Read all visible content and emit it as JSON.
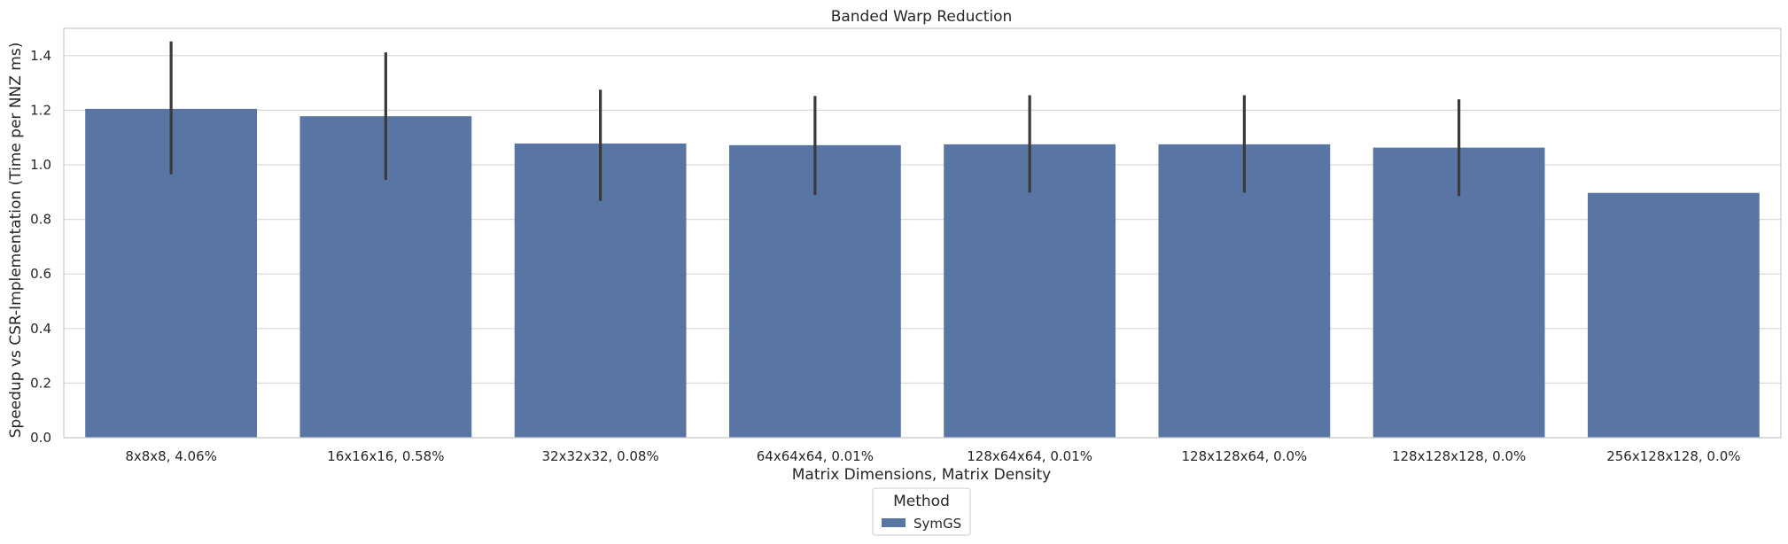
{
  "chart_data": {
    "type": "bar",
    "title": "Banded Warp Reduction",
    "xlabel": "Matrix Dimensions, Matrix Density",
    "ylabel": "Speedup vs CSR-Implementation (Time per NNZ ms)",
    "categories": [
      "8x8x8, 4.06%",
      "16x16x16, 0.58%",
      "32x32x32, 0.08%",
      "64x64x64, 0.01%",
      "128x64x64, 0.01%",
      "128x128x64, 0.0%",
      "128x128x128, 0.0%",
      "256x128x128, 0.0%"
    ],
    "series": [
      {
        "name": "SymGS",
        "color": "#5975a4",
        "values": [
          1.205,
          1.178,
          1.078,
          1.072,
          1.075,
          1.075,
          1.063,
          0.897
        ],
        "error_low": [
          0.965,
          0.945,
          0.868,
          0.89,
          0.898,
          0.898,
          0.885,
          null
        ],
        "error_high": [
          1.452,
          1.412,
          1.275,
          1.252,
          1.255,
          1.255,
          1.24,
          null
        ]
      }
    ],
    "ylim": [
      0,
      1.5
    ],
    "yticks": [
      "0.0",
      "0.2",
      "0.4",
      "0.6",
      "0.8",
      "1.0",
      "1.2",
      "1.4"
    ],
    "grid": "horizontal",
    "legend": {
      "title": "Method",
      "placement": "bottom-center"
    }
  }
}
